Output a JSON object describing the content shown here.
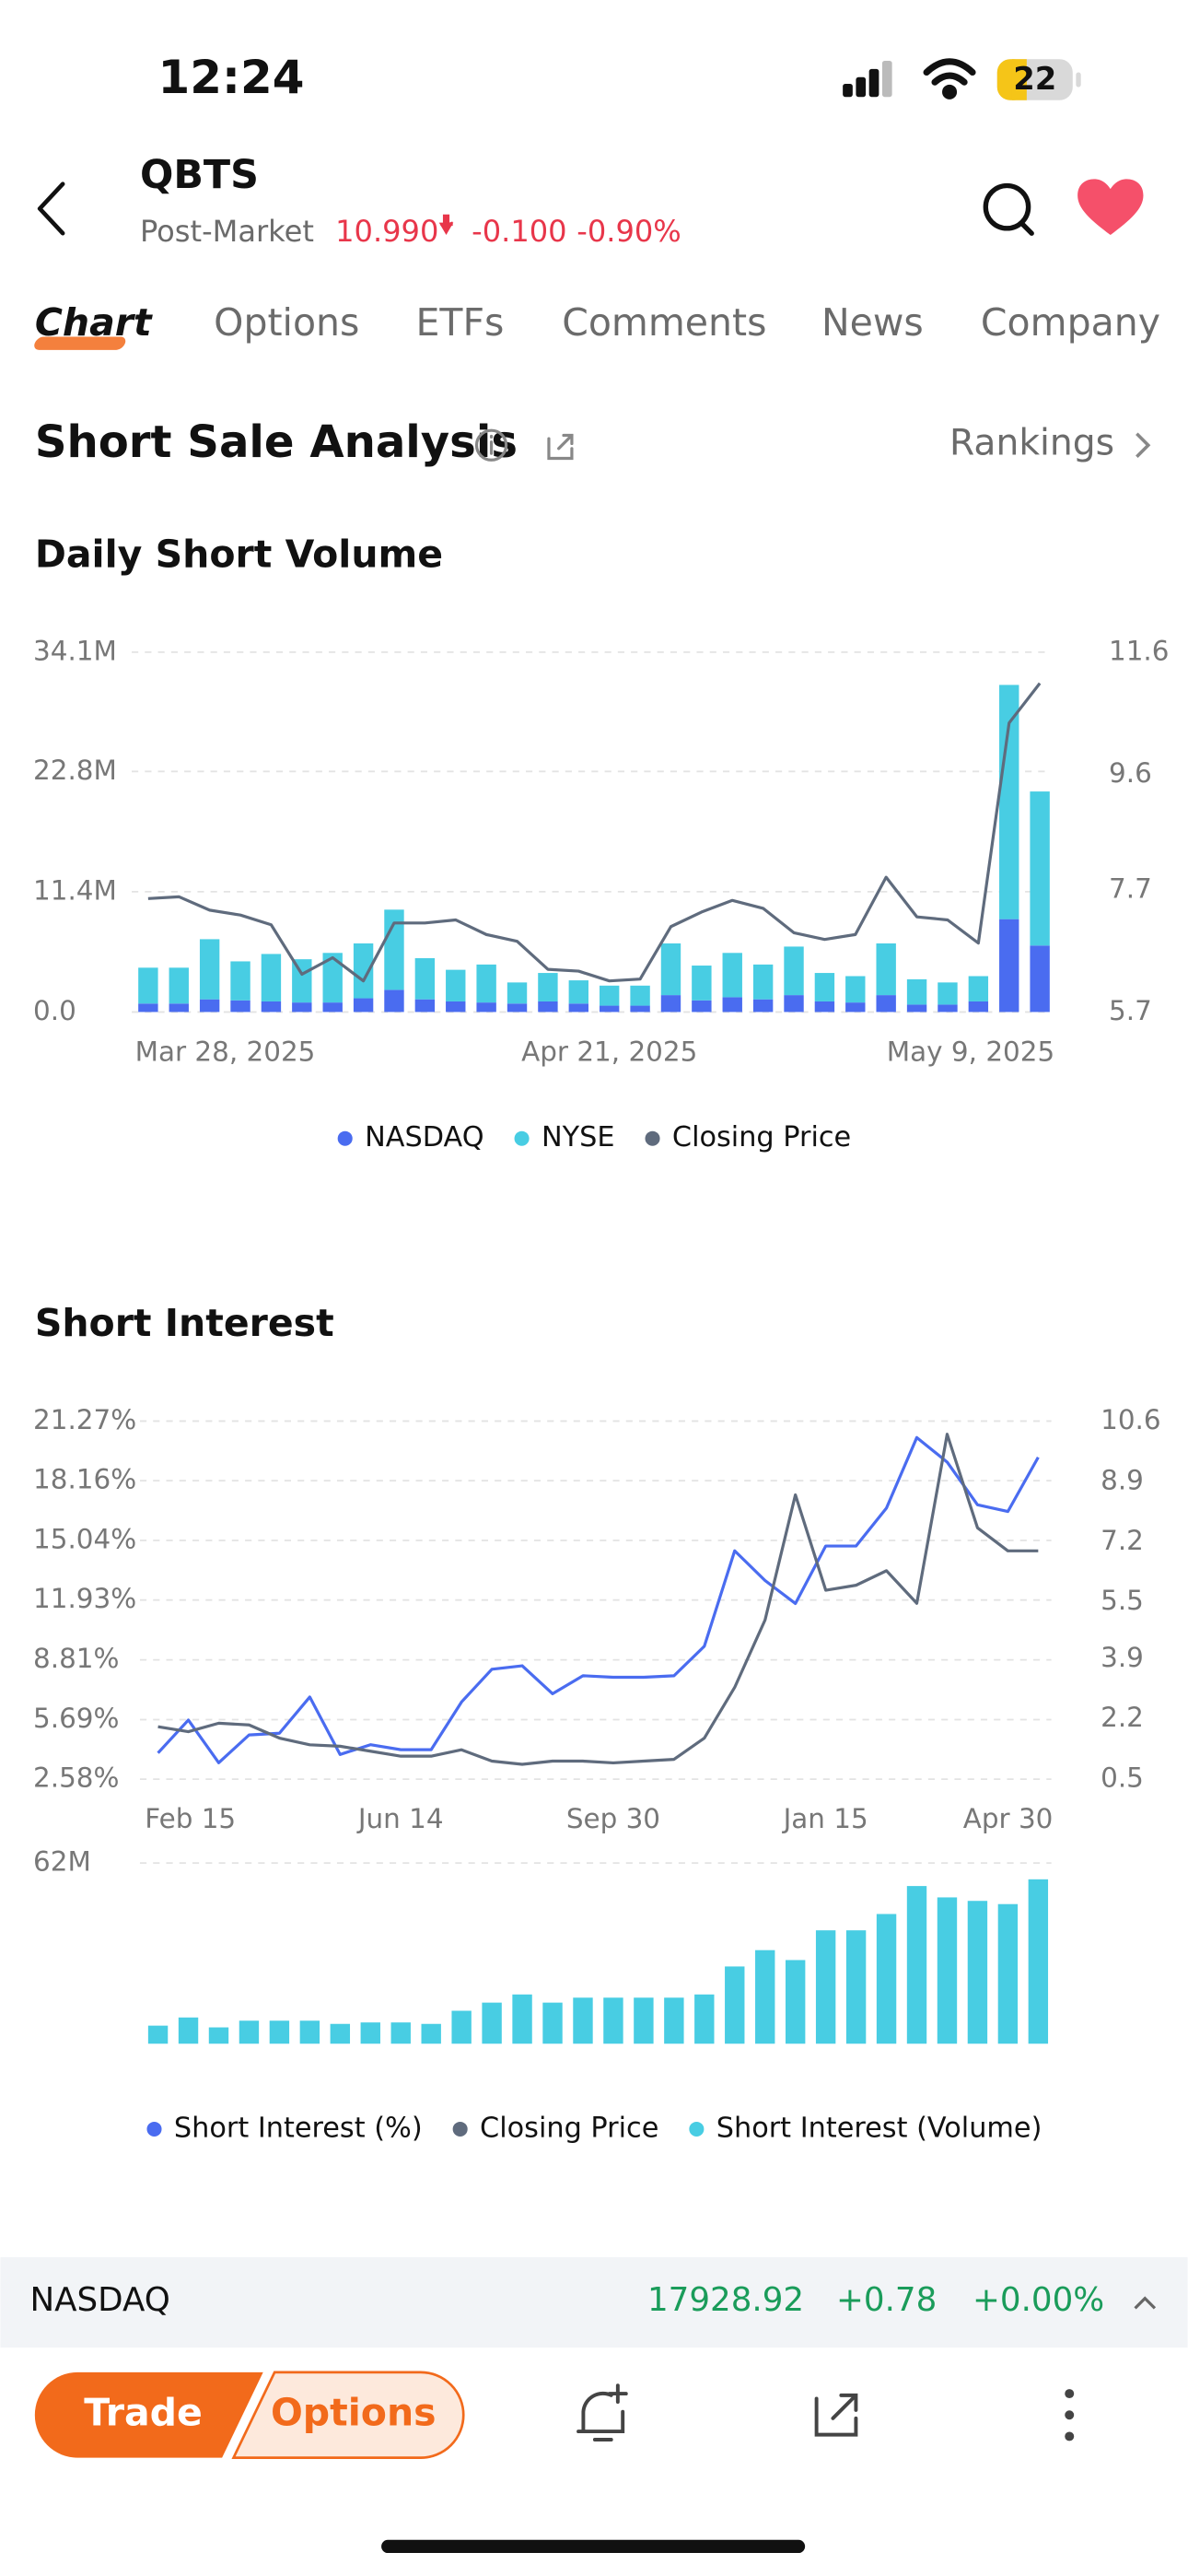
{
  "status_bar": {
    "time": "12:24",
    "battery": "22"
  },
  "header": {
    "symbol": "QBTS",
    "session": "Post-Market",
    "price": "10.990",
    "change": "-0.100",
    "change_pct": "-0.90%"
  },
  "tabs": [
    "Chart",
    "Options",
    "ETFs",
    "Comments",
    "News",
    "Company"
  ],
  "section": {
    "title": "Short Sale Analysis",
    "link": "Rankings"
  },
  "daily_short_volume": {
    "type": "bar",
    "title": "Daily Short Volume",
    "stacked": true,
    "grid": true,
    "categories": [
      "Mar 28, 2025",
      null,
      null,
      null,
      null,
      null,
      null,
      null,
      null,
      null,
      null,
      null,
      null,
      null,
      null,
      "Apr 21, 2025",
      null,
      null,
      null,
      null,
      null,
      null,
      null,
      null,
      null,
      null,
      null,
      null,
      null,
      "May 9, 2025"
    ],
    "series": [
      {
        "name": "NASDAQ",
        "color": "#4a6cf0",
        "values": [
          0.8,
          0.8,
          1.2,
          1.1,
          1.0,
          0.9,
          0.9,
          1.3,
          2.1,
          1.2,
          1.0,
          0.9,
          0.8,
          1.0,
          0.8,
          0.6,
          0.6,
          1.6,
          1.1,
          1.4,
          1.2,
          1.6,
          1.0,
          0.9,
          1.6,
          0.7,
          0.7,
          1.0,
          8.8,
          6.3
        ]
      },
      {
        "name": "NYSE",
        "color": "#48cde3",
        "values": [
          3.4,
          3.4,
          5.7,
          3.7,
          4.5,
          4.1,
          4.7,
          5.2,
          7.6,
          3.9,
          3.0,
          3.6,
          2.0,
          2.7,
          2.2,
          1.9,
          1.9,
          4.9,
          3.3,
          4.2,
          3.3,
          4.6,
          2.7,
          2.5,
          4.9,
          2.4,
          2.1,
          2.4,
          22.2,
          14.6
        ]
      },
      {
        "name": "Closing Price",
        "color": "#5f6b7d",
        "type": "line",
        "axis": "y2",
        "values": [
          7.56,
          7.59,
          7.37,
          7.29,
          7.13,
          6.32,
          6.59,
          6.21,
          7.16,
          7.16,
          7.21,
          6.97,
          6.86,
          6.4,
          6.37,
          6.21,
          6.24,
          7.1,
          7.34,
          7.53,
          7.4,
          7.0,
          6.89,
          6.97,
          7.91,
          7.26,
          7.21,
          6.83,
          10.44,
          11.09
        ]
      }
    ],
    "ylim": [
      0,
      34.1
    ],
    "yticks": [
      {
        "value": 0,
        "label": "0.0"
      },
      {
        "value": 11.4,
        "label": "11.4M"
      },
      {
        "value": 22.8,
        "label": "22.8M"
      },
      {
        "value": 34.1,
        "label": "34.1M"
      }
    ],
    "y2lim": [
      5.7,
      11.6
    ],
    "y2ticks": [
      5.7,
      7.7,
      9.6,
      11.6
    ]
  },
  "short_interest": {
    "title": "Short Interest",
    "price_chart": {
      "type": "line",
      "grid": true,
      "categories": [
        "Feb 15",
        null,
        null,
        null,
        null,
        null,
        null,
        null,
        "Jun 14",
        null,
        null,
        null,
        null,
        null,
        null,
        "Sep 30",
        null,
        null,
        null,
        null,
        null,
        null,
        "Jan 15",
        null,
        null,
        null,
        null,
        null,
        null,
        "Apr 30"
      ],
      "series": [
        {
          "name": "Short Interest (%)",
          "color": "#4a6cf0",
          "values": [
            3.95,
            5.67,
            3.44,
            4.89,
            4.98,
            6.87,
            3.87,
            4.38,
            4.12,
            4.12,
            6.61,
            8.32,
            8.5,
            7.04,
            7.98,
            7.9,
            7.9,
            7.98,
            9.52,
            14.5,
            12.95,
            11.75,
            14.75,
            14.75,
            16.73,
            20.41,
            19.13,
            16.9,
            16.55,
            19.38
          ]
        },
        {
          "name": "Closing Price",
          "color": "#5f6b7d",
          "axis": "y2",
          "values": [
            1.98,
            1.84,
            2.08,
            2.03,
            1.66,
            1.47,
            1.43,
            1.29,
            1.15,
            1.15,
            1.33,
            1.01,
            0.92,
            1.01,
            1.01,
            0.96,
            1.01,
            1.06,
            1.66,
            3.09,
            4.99,
            8.52,
            5.83,
            5.97,
            6.38,
            5.46,
            10.23,
            7.59,
            6.94,
            6.94
          ]
        }
      ],
      "ylim": [
        2.58,
        21.27
      ],
      "yticks": [
        {
          "value": 2.58,
          "label": "2.58%"
        },
        {
          "value": 5.69,
          "label": "5.69%"
        },
        {
          "value": 8.81,
          "label": "8.81%"
        },
        {
          "value": 11.93,
          "label": "11.93%"
        },
        {
          "value": 15.04,
          "label": "15.04%"
        },
        {
          "value": 18.16,
          "label": "18.16%"
        },
        {
          "value": 21.27,
          "label": "21.27%"
        }
      ],
      "y2lim": [
        0.5,
        10.6
      ],
      "y2ticks": [
        0.5,
        2.2,
        3.9,
        5.5,
        7.2,
        8.9,
        10.6
      ]
    },
    "volume_chart": {
      "type": "bar",
      "grid": true,
      "series": [
        {
          "name": "Short Interest (Volume)",
          "color": "#48cde3",
          "values": [
            6.2,
            9.0,
            5.6,
            7.9,
            7.9,
            7.9,
            6.8,
            7.3,
            7.3,
            6.8,
            11.3,
            14.1,
            16.9,
            14.1,
            15.8,
            15.8,
            15.8,
            15.8,
            16.9,
            26.5,
            32.1,
            28.7,
            38.9,
            38.9,
            44.5,
            54.1,
            50.2,
            49.0,
            47.9,
            56.4
          ]
        }
      ],
      "ylim": [
        0,
        62
      ],
      "yticks": [
        {
          "value": 62,
          "label": "62M"
        }
      ]
    }
  },
  "ticker_bar": {
    "index": "NASDAQ",
    "value": "17928.92",
    "change": "+0.78",
    "change_pct": "+0.00%"
  },
  "bottom_bar": {
    "trade": "Trade",
    "options": "Options"
  }
}
